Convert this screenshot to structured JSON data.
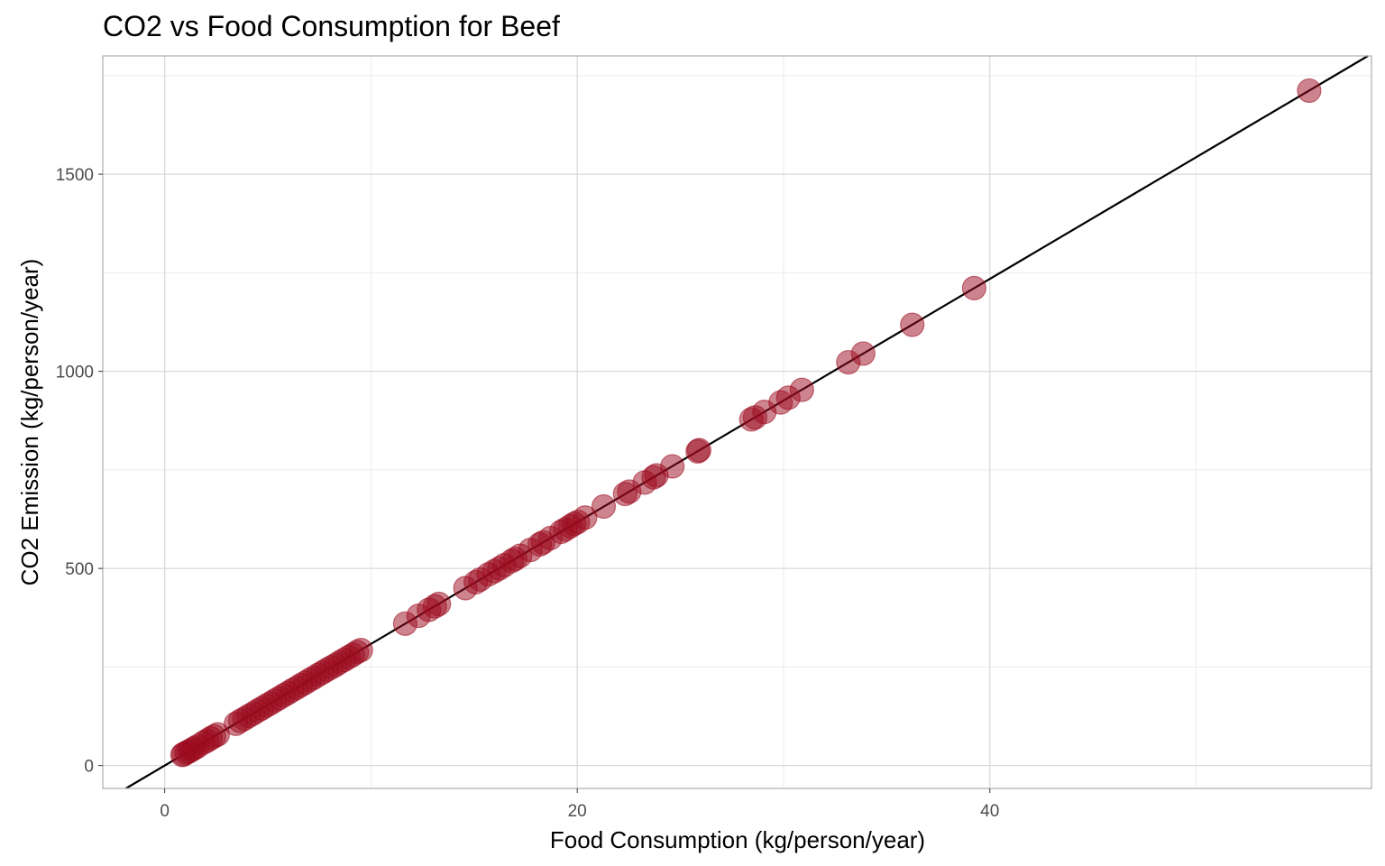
{
  "chart_data": {
    "type": "scatter",
    "title": "CO2 vs Food Consumption for Beef",
    "xlabel": "Food Consumption (kg/person/year)",
    "ylabel": "CO2 Emission (kg/person/year)",
    "xlim": [
      -3.0,
      58.5
    ],
    "ylim": [
      -58,
      1800
    ],
    "x_ticks": [
      0,
      20,
      40
    ],
    "x_minor_ticks": [
      10,
      30,
      50
    ],
    "y_ticks": [
      0,
      500,
      1000,
      1500
    ],
    "y_minor_ticks": [
      250,
      750,
      1250,
      1750
    ],
    "grid": true,
    "point_color": "#9b0a1d",
    "point_alpha": 0.5,
    "line": {
      "slope": 30.86,
      "intercept": 0,
      "color": "#000000"
    },
    "series": [
      {
        "x": [
          55.48,
          39.24,
          36.24,
          33.86,
          33.14,
          30.89,
          30.23,
          29.86,
          29.07,
          28.62,
          28.44,
          25.91,
          25.84,
          24.61,
          23.84,
          23.7,
          23.27,
          22.52,
          22.32,
          21.28,
          20.38,
          20.03,
          19.85,
          19.66,
          19.42,
          19.22,
          18.7,
          18.34,
          18.18,
          17.73,
          17.23,
          16.99,
          16.82,
          16.46,
          16.22,
          15.98,
          15.7,
          15.3,
          15.08,
          14.58,
          13.29,
          13.1,
          12.81,
          12.31,
          11.66,
          9.51,
          9.32,
          9.12,
          8.91,
          8.7,
          8.49,
          8.28,
          8.07,
          7.86,
          7.65,
          7.44,
          7.23,
          7.02,
          6.81,
          6.6,
          6.39,
          6.18,
          5.97,
          5.76,
          5.55,
          5.34,
          5.13,
          4.92,
          4.71,
          4.5,
          4.29,
          4.08,
          3.87,
          3.66,
          3.45,
          2.57,
          2.4,
          2.22,
          2.05,
          1.87,
          1.6,
          1.44,
          1.31,
          1.18,
          1.06,
          0.93,
          0.86
        ],
        "y": [
          1712,
          1211,
          1118,
          1045,
          1023,
          953,
          933,
          921,
          897,
          883,
          878,
          800,
          797,
          759,
          736,
          731,
          718,
          695,
          689,
          657,
          629,
          618,
          613,
          607,
          599,
          593,
          577,
          566,
          561,
          547,
          532,
          524,
          519,
          508,
          500,
          493,
          485,
          472,
          465,
          450,
          410,
          404,
          395,
          380,
          360,
          293,
          288,
          281,
          275,
          268,
          262,
          255,
          249,
          243,
          236,
          230,
          223,
          217,
          210,
          204,
          197,
          191,
          184,
          178,
          171,
          165,
          158,
          152,
          145,
          139,
          132,
          126,
          119,
          113,
          106,
          79,
          74,
          69,
          63,
          58,
          49,
          44,
          40,
          36,
          33,
          29,
          27
        ]
      }
    ]
  }
}
